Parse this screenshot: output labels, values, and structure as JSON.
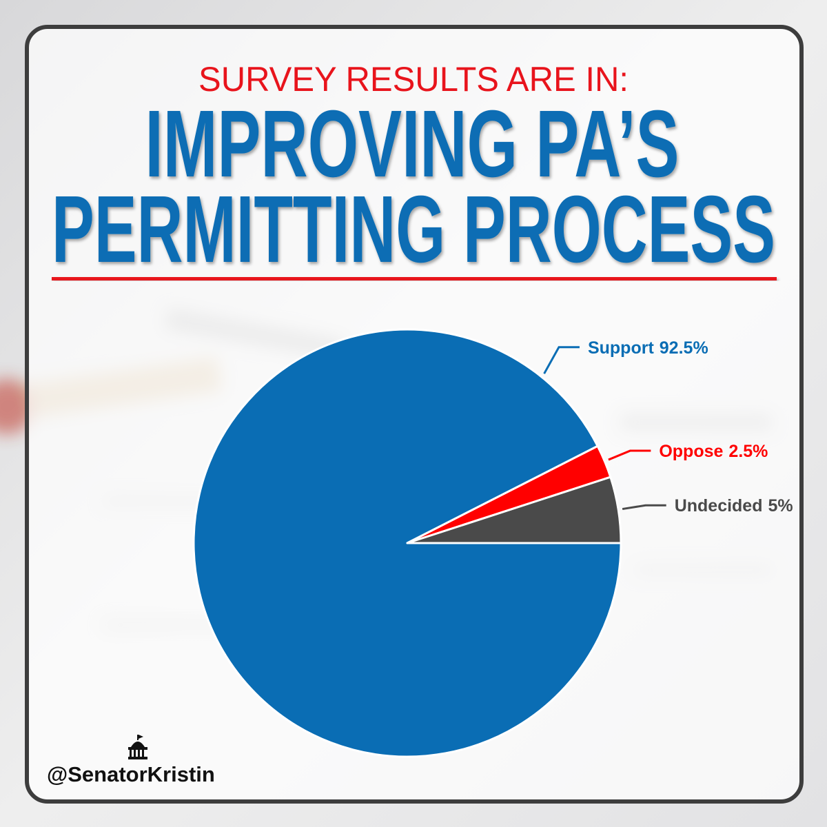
{
  "subtitle": "SURVEY RESULTS ARE IN:",
  "title": [
    "IMPROVING PA’S",
    "PERMITTING PROCESS"
  ],
  "handle": "@SenatorKristin",
  "chart_data": {
    "type": "pie",
    "categories": [
      "Support",
      "Oppose",
      "Undecided"
    ],
    "values": [
      92.5,
      2.5,
      5
    ],
    "value_labels": [
      "92.5%",
      "2.5%",
      "5%"
    ],
    "colors": [
      "#0a6db4",
      "#ff0000",
      "#4a4a4a"
    ]
  }
}
